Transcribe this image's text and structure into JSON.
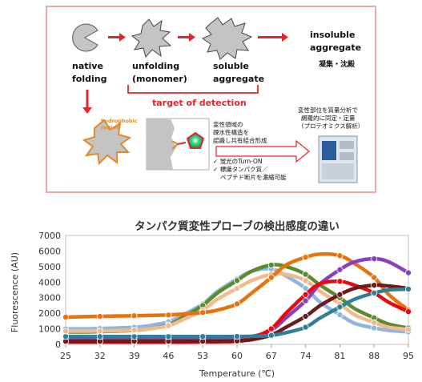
{
  "diagram": {
    "stages": [
      {
        "label_line1": "native",
        "label_line2": "folding"
      },
      {
        "label_line1": "unfolding",
        "label_line2": "(monomer)"
      },
      {
        "label_line1": "soluble",
        "label_line2": "aggregate"
      },
      {
        "label_line1": "insoluble",
        "label_line2": "aggregate",
        "note": "凝集・沈殿"
      }
    ],
    "target_label": "target of detection",
    "hydrophobic_label_line1": "hydrophobic",
    "hydrophobic_label_line2": "region",
    "probe_text": [
      "変性領域の",
      "疎水性構造を",
      "認識し共有結合形成"
    ],
    "features": [
      "✓ 蛍光のTurn-ON",
      "✓ 標識タンパク質／",
      "ペプチド断片を濃縮可能"
    ],
    "ms_text": [
      "変性部位を質量分析で",
      "網羅的に同定・定量",
      "（プロテオミクス解析）"
    ],
    "colors": {
      "frame": "#f0a7a7",
      "accent": "#e3262b",
      "fill_gray": "#bdbdbd",
      "orange": "#e08a2c"
    }
  },
  "chart_data": {
    "type": "line",
    "title": "タンパク質変性プローブの検出感度の違い",
    "xlabel": "Temperature (℃)",
    "ylabel": "Fluorescence (AU)",
    "xlim": [
      25,
      95
    ],
    "ylim": [
      0,
      7000
    ],
    "xticks": [
      25,
      32,
      39,
      46,
      53,
      60,
      67,
      74,
      81,
      88,
      95
    ],
    "yticks": [
      0,
      1000,
      2000,
      3000,
      4000,
      5000,
      6000,
      7000
    ],
    "grid": false,
    "series": [
      {
        "color": "#8db7e0",
        "x": [
          25,
          29,
          32,
          35,
          39,
          42,
          46,
          49,
          53,
          56,
          60,
          63,
          67,
          70,
          74,
          77,
          81,
          84,
          88,
          91,
          95
        ],
        "y": [
          1000,
          1000,
          1020,
          1050,
          1100,
          1200,
          1450,
          1900,
          2600,
          3400,
          4200,
          4700,
          4850,
          4400,
          3600,
          2700,
          1900,
          1350,
          1050,
          900,
          800
        ]
      },
      {
        "color": "#5c8a2e",
        "x": [
          25,
          29,
          32,
          35,
          39,
          42,
          46,
          49,
          53,
          56,
          60,
          63,
          67,
          70,
          74,
          77,
          81,
          84,
          88,
          91,
          95
        ],
        "y": [
          800,
          800,
          820,
          850,
          900,
          1000,
          1250,
          1750,
          2500,
          3300,
          4100,
          4700,
          5100,
          5000,
          4500,
          3800,
          3000,
          2300,
          1700,
          1300,
          1050
        ]
      },
      {
        "color": "#f2b98c",
        "x": [
          25,
          29,
          32,
          35,
          39,
          42,
          46,
          49,
          53,
          56,
          60,
          63,
          67,
          70,
          74,
          77,
          81,
          84,
          88,
          91,
          95
        ],
        "y": [
          850,
          850,
          860,
          880,
          920,
          1000,
          1200,
          1600,
          2200,
          2900,
          3600,
          4100,
          4500,
          4500,
          4100,
          3400,
          2600,
          1900,
          1400,
          1100,
          950
        ]
      },
      {
        "color": "#e8730e",
        "x": [
          25,
          29,
          32,
          35,
          39,
          42,
          46,
          49,
          53,
          56,
          60,
          63,
          67,
          70,
          74,
          77,
          81,
          84,
          88,
          91,
          95
        ],
        "y": [
          1750,
          1780,
          1800,
          1820,
          1840,
          1860,
          1890,
          1950,
          2050,
          2200,
          2600,
          3300,
          4300,
          5100,
          5600,
          5800,
          5700,
          5200,
          4300,
          3200,
          2200
        ]
      },
      {
        "color": "#8a3fbf",
        "x": [
          25,
          29,
          32,
          35,
          39,
          42,
          46,
          49,
          53,
          56,
          60,
          63,
          67,
          70,
          74,
          77,
          81,
          84,
          88,
          91,
          95
        ],
        "y": [
          400,
          400,
          400,
          400,
          400,
          400,
          400,
          400,
          400,
          400,
          420,
          500,
          900,
          1700,
          2800,
          3900,
          4800,
          5300,
          5500,
          5300,
          4600
        ]
      },
      {
        "color": "#e8080f",
        "x": [
          25,
          29,
          32,
          35,
          39,
          42,
          46,
          49,
          53,
          56,
          60,
          63,
          67,
          70,
          74,
          77,
          81,
          84,
          88,
          91,
          95
        ],
        "y": [
          150,
          150,
          150,
          150,
          150,
          150,
          150,
          150,
          160,
          170,
          200,
          400,
          1000,
          2000,
          3200,
          3900,
          4050,
          3800,
          3300,
          2700,
          2100
        ]
      },
      {
        "color": "#6b1b1b",
        "x": [
          25,
          29,
          32,
          35,
          39,
          42,
          46,
          49,
          53,
          56,
          60,
          63,
          67,
          70,
          74,
          77,
          81,
          84,
          88,
          91,
          95
        ],
        "y": [
          200,
          200,
          200,
          200,
          200,
          200,
          200,
          200,
          200,
          200,
          220,
          300,
          600,
          1100,
          1800,
          2500,
          3200,
          3600,
          3800,
          3750,
          3600
        ]
      },
      {
        "color": "#2f7f96",
        "x": [
          25,
          29,
          32,
          35,
          39,
          42,
          46,
          49,
          53,
          56,
          60,
          63,
          67,
          70,
          74,
          77,
          81,
          84,
          88,
          91,
          95
        ],
        "y": [
          500,
          500,
          500,
          500,
          500,
          500,
          500,
          500,
          500,
          500,
          510,
          520,
          580,
          750,
          1100,
          1700,
          2400,
          2900,
          3300,
          3500,
          3550
        ]
      }
    ]
  }
}
